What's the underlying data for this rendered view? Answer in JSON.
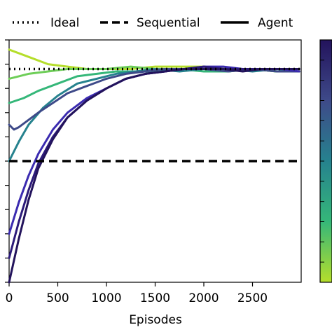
{
  "chart_data": {
    "type": "line",
    "title": "",
    "xlabel": "Episodes",
    "ylabel": "",
    "xlim": [
      0,
      3000
    ],
    "ylim": [
      0,
      1.0
    ],
    "xticks": [
      0,
      500,
      1000,
      1500,
      2000,
      2500
    ],
    "xtick_labels": [
      "0",
      "500",
      "1000",
      "1500",
      "2000",
      "2500"
    ],
    "grid": false,
    "legend_position": "top",
    "legend": [
      {
        "name": "Ideal",
        "style": "dotted"
      },
      {
        "name": "Sequential",
        "style": "dashed"
      },
      {
        "name": "Agent",
        "style": "solid"
      }
    ],
    "reference_lines": [
      {
        "name": "Ideal",
        "y": 0.88,
        "style": "dotted",
        "color": "#000000"
      },
      {
        "name": "Sequential",
        "y": 0.5,
        "style": "dashed",
        "color": "#000000"
      }
    ],
    "colormap": "viridis",
    "series": [
      {
        "color": "#b5de2b",
        "x": [
          0,
          200,
          400,
          600,
          800,
          1000,
          1250,
          1500,
          1750,
          2000,
          2250,
          2500,
          2750,
          2980
        ],
        "y": [
          0.96,
          0.93,
          0.9,
          0.89,
          0.88,
          0.88,
          0.88,
          0.89,
          0.89,
          0.89,
          0.88,
          0.88,
          0.87,
          0.87
        ]
      },
      {
        "color": "#6ece58",
        "x": [
          0,
          200,
          400,
          600,
          800,
          1000,
          1250,
          1500,
          1750,
          2000,
          2250,
          2500,
          2750,
          2980
        ],
        "y": [
          0.84,
          0.86,
          0.87,
          0.88,
          0.88,
          0.88,
          0.89,
          0.88,
          0.88,
          0.88,
          0.87,
          0.88,
          0.87,
          0.87
        ]
      },
      {
        "color": "#35b779",
        "x": [
          0,
          150,
          300,
          500,
          700,
          900,
          1100,
          1300,
          1500,
          1750,
          2000,
          2250,
          2500,
          2750,
          2980
        ],
        "y": [
          0.74,
          0.76,
          0.79,
          0.82,
          0.85,
          0.86,
          0.87,
          0.87,
          0.87,
          0.88,
          0.87,
          0.87,
          0.88,
          0.87,
          0.87
        ]
      },
      {
        "color": "#26828e",
        "x": [
          0,
          100,
          200,
          350,
          500,
          700,
          900,
          1100,
          1300,
          1500,
          1750,
          2000,
          2250,
          2500,
          2750,
          2980
        ],
        "y": [
          0.5,
          0.58,
          0.65,
          0.72,
          0.77,
          0.82,
          0.84,
          0.86,
          0.87,
          0.88,
          0.87,
          0.88,
          0.88,
          0.87,
          0.88,
          0.87
        ]
      },
      {
        "color": "#3e4a89",
        "x": [
          0,
          50,
          100,
          200,
          300,
          450,
          600,
          800,
          1000,
          1200,
          1400,
          1600,
          1800,
          2000,
          2250,
          2500,
          2750,
          2980
        ],
        "y": [
          0.65,
          0.63,
          0.64,
          0.67,
          0.7,
          0.74,
          0.78,
          0.81,
          0.84,
          0.86,
          0.87,
          0.88,
          0.88,
          0.88,
          0.87,
          0.88,
          0.87,
          0.87
        ]
      },
      {
        "color": "#3b2bb0",
        "x": [
          0,
          100,
          200,
          300,
          450,
          600,
          800,
          1000,
          1200,
          1400,
          1600,
          1800,
          2000,
          2200,
          2400,
          2600,
          2800,
          2980
        ],
        "y": [
          0.2,
          0.33,
          0.44,
          0.53,
          0.63,
          0.7,
          0.76,
          0.8,
          0.84,
          0.86,
          0.87,
          0.88,
          0.89,
          0.89,
          0.88,
          0.88,
          0.88,
          0.87
        ]
      },
      {
        "color": "#2c1a7a",
        "x": [
          0,
          100,
          200,
          300,
          450,
          600,
          800,
          1000,
          1200,
          1400,
          1600,
          1800,
          2000,
          2200,
          2400,
          2600,
          2800,
          2980
        ],
        "y": [
          0.1,
          0.25,
          0.38,
          0.49,
          0.6,
          0.68,
          0.75,
          0.8,
          0.84,
          0.86,
          0.87,
          0.88,
          0.89,
          0.88,
          0.88,
          0.88,
          0.88,
          0.88
        ]
      },
      {
        "color": "#23135c",
        "x": [
          0,
          100,
          200,
          300,
          450,
          600,
          800,
          1000,
          1200,
          1400,
          1600,
          1800,
          2000,
          2200,
          2400,
          2600,
          2800,
          2980
        ],
        "y": [
          0.0,
          0.18,
          0.34,
          0.47,
          0.59,
          0.68,
          0.75,
          0.8,
          0.84,
          0.86,
          0.87,
          0.88,
          0.88,
          0.88,
          0.87,
          0.88,
          0.88,
          0.88
        ]
      }
    ]
  }
}
